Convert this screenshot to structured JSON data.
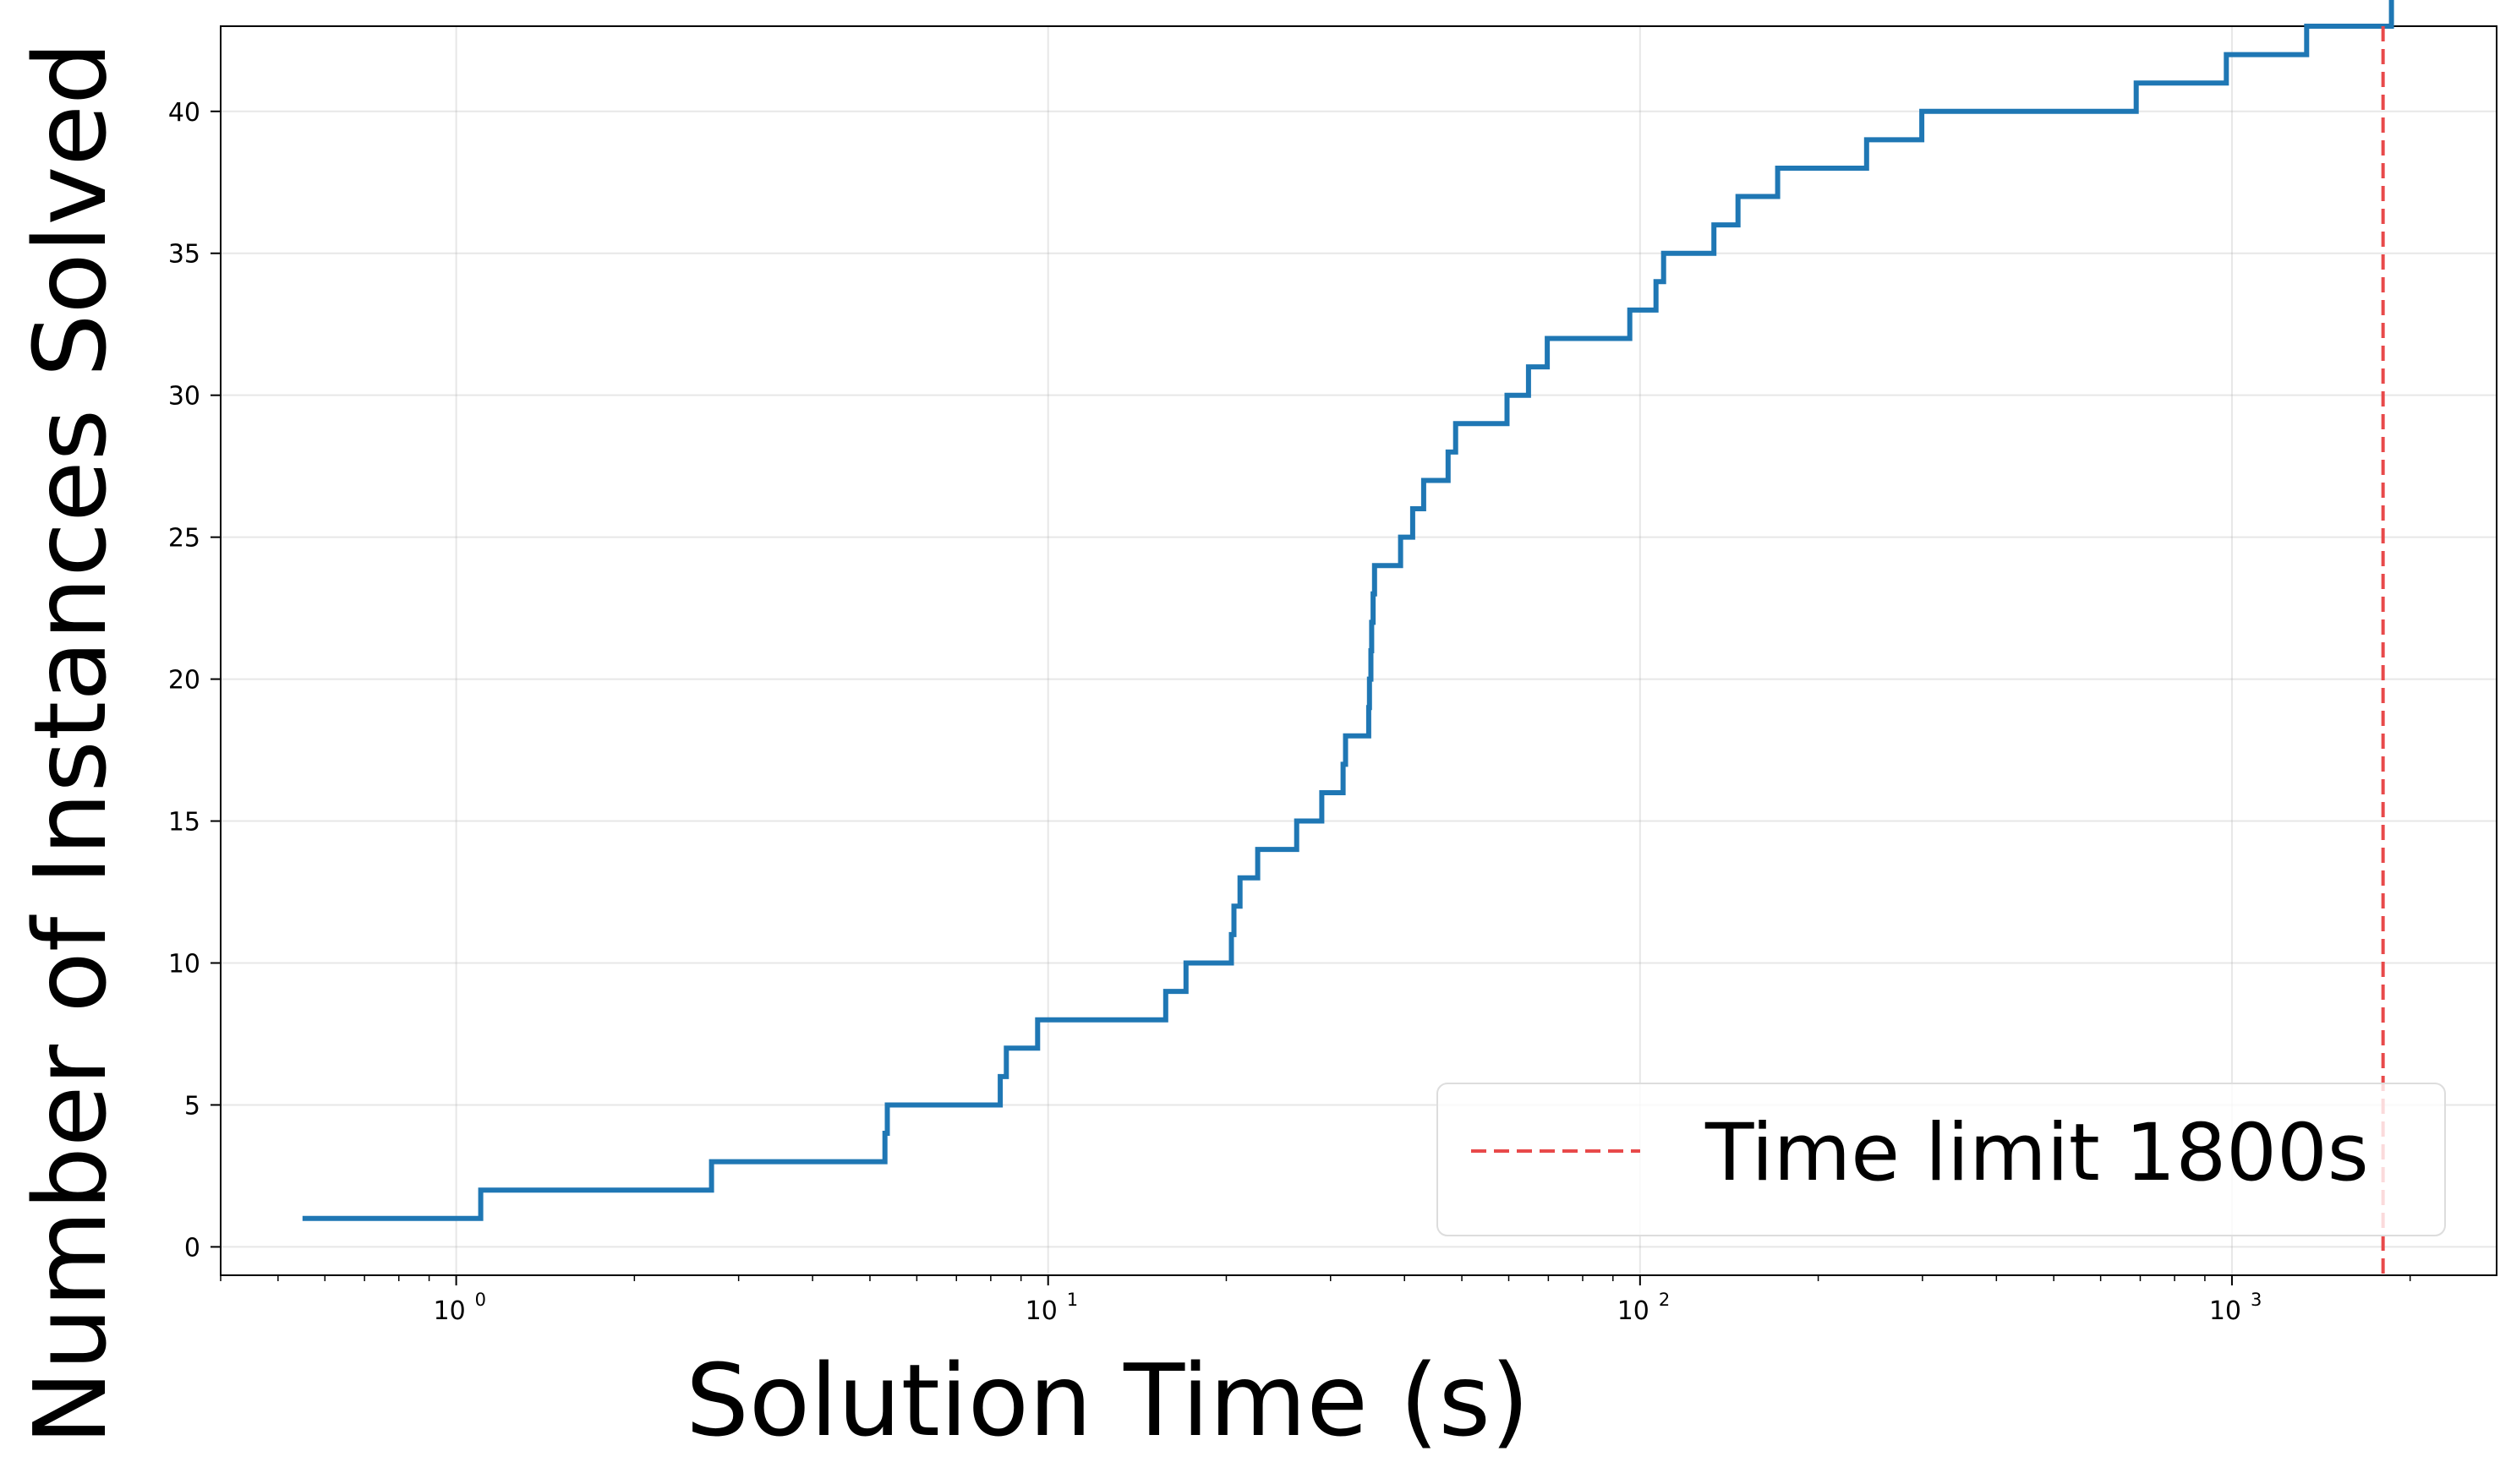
{
  "chart_data": {
    "type": "line",
    "step": "post",
    "xlabel": "Solution Time (s)",
    "ylabel": "Number of Instances Solved",
    "xscale": "log",
    "xlim": [
      0.4,
      2800
    ],
    "ylim": [
      -1,
      43
    ],
    "grid": true,
    "legend_position": "bottom-right",
    "x_ticks": [
      {
        "base": "10",
        "exp": "0"
      },
      {
        "base": "10",
        "exp": "1"
      },
      {
        "base": "10",
        "exp": "2"
      },
      {
        "base": "10",
        "exp": "3"
      }
    ],
    "y_ticks": [
      0,
      5,
      10,
      15,
      20,
      25,
      30,
      35,
      40
    ],
    "series": [
      {
        "color": "#1f77b4",
        "x": [
          0.55,
          1.1,
          2.7,
          5.3,
          5.35,
          8.3,
          8.5,
          9.6,
          15.8,
          17.1,
          20.4,
          20.6,
          21.1,
          22.6,
          26.3,
          29.0,
          31.5,
          31.8,
          34.8,
          34.9,
          35.1,
          35.2,
          35.4,
          35.6,
          39.4,
          41.3,
          43.1,
          47.4,
          48.8,
          59.6,
          64.8,
          69.7,
          96.1,
          106.4,
          109.6,
          133.3,
          146.4,
          170.8,
          241.4,
          299.2,
          689.1,
          978.5,
          1337.3,
          1860
        ],
        "y": [
          1,
          2,
          3,
          4,
          5,
          6,
          7,
          8,
          9,
          10,
          11,
          12,
          13,
          14,
          15,
          16,
          17,
          18,
          19,
          20,
          21,
          22,
          23,
          24,
          25,
          26,
          27,
          28,
          29,
          30,
          31,
          32,
          33,
          34,
          35,
          36,
          37,
          38,
          39,
          40,
          41,
          42,
          43,
          44
        ]
      }
    ],
    "limit_line": {
      "x": 1800,
      "color": "#e8494a",
      "label": "Time limit 1800s"
    }
  }
}
